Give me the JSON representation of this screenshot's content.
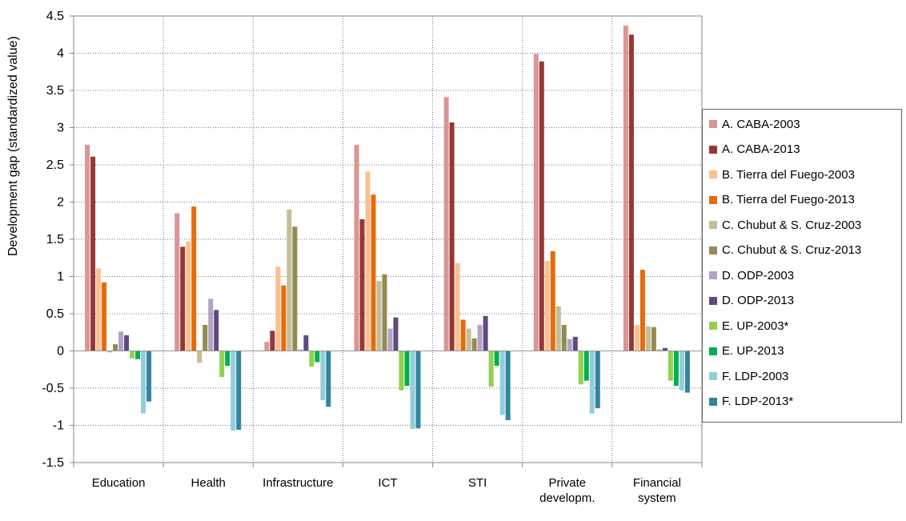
{
  "chart_data": {
    "type": "bar",
    "ylabel": "Development gap (standardized value)",
    "ylim": [
      -1.5,
      4.5
    ],
    "yticks": [
      -1.5,
      -1,
      -0.5,
      0,
      0.5,
      1,
      1.5,
      2,
      2.5,
      3,
      3.5,
      4,
      4.5
    ],
    "ytick_labels": [
      "-1.5",
      "-1",
      "-0.5",
      "0",
      "0.5",
      "1",
      "1.5",
      "2",
      "2.5",
      "3",
      "3.5",
      "4",
      "4.5"
    ],
    "grid": true,
    "legend_position": "right",
    "categories": [
      [
        "Education"
      ],
      [
        "Health"
      ],
      [
        "Infrastructure"
      ],
      [
        "ICT"
      ],
      [
        "STI"
      ],
      [
        "Private",
        "developm."
      ],
      [
        "Financial",
        "system"
      ]
    ],
    "series": [
      {
        "name": "A. CABA-2003",
        "color": "#D99694",
        "values": [
          2.77,
          1.85,
          0.12,
          2.77,
          3.41,
          3.99,
          4.37
        ]
      },
      {
        "name": "A. CABA-2013",
        "color": "#953735",
        "values": [
          2.61,
          1.4,
          0.27,
          1.77,
          3.07,
          3.89,
          4.25
        ]
      },
      {
        "name": "B. Tierra del Fuego-2003",
        "color": "#FAC090",
        "values": [
          1.11,
          1.47,
          1.13,
          2.41,
          1.18,
          1.21,
          0.35
        ]
      },
      {
        "name": "B. Tierra del Fuego-2013",
        "color": "#E46C0A",
        "values": [
          0.92,
          1.94,
          0.88,
          2.1,
          0.42,
          1.34,
          1.09
        ]
      },
      {
        "name": "C. Chubut & S. Cruz-2003",
        "color": "#C4BD97",
        "values": [
          -0.02,
          -0.16,
          1.9,
          0.94,
          0.3,
          0.6,
          0.33
        ]
      },
      {
        "name": "C. Chubut & S. Cruz-2013",
        "color": "#948A54",
        "values": [
          0.09,
          0.35,
          1.67,
          1.03,
          0.17,
          0.35,
          0.32
        ]
      },
      {
        "name": "D. ODP-2003",
        "color": "#B3A2C7",
        "values": [
          0.26,
          0.7,
          0.02,
          0.3,
          0.35,
          0.16,
          0.02
        ]
      },
      {
        "name": "D. ODP-2013",
        "color": "#604A7B",
        "values": [
          0.21,
          0.55,
          0.21,
          0.45,
          0.47,
          0.19,
          0.04
        ]
      },
      {
        "name": "E. UP-2003*",
        "color": "#92D050",
        "values": [
          -0.1,
          -0.35,
          -0.21,
          -0.53,
          -0.48,
          -0.45,
          -0.4
        ]
      },
      {
        "name": "E. UP-2013",
        "color": "#00B050",
        "values": [
          -0.11,
          -0.2,
          -0.15,
          -0.47,
          -0.2,
          -0.4,
          -0.47
        ]
      },
      {
        "name": "F. LDP-2003",
        "color": "#93CDDD",
        "values": [
          -0.84,
          -1.07,
          -0.66,
          -1.05,
          -0.86,
          -0.84,
          -0.53
        ]
      },
      {
        "name": "F. LDP-2013*",
        "color": "#31859C",
        "values": [
          -0.68,
          -1.06,
          -0.75,
          -1.04,
          -0.93,
          -0.77,
          -0.56
        ]
      }
    ]
  }
}
